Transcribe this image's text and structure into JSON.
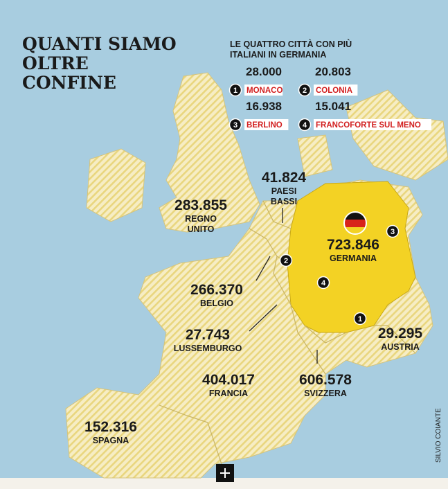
{
  "title": {
    "lines": [
      "QUANTI SIAMO",
      "OLTRE",
      "CONFINE"
    ]
  },
  "subtitle": {
    "lines": [
      "LE QUATTRO CITTÀ CON PIÙ",
      "ITALIANI IN GERMANIA"
    ]
  },
  "cities": [
    {
      "rank": "1",
      "value": "28.000",
      "name": "MONACO"
    },
    {
      "rank": "2",
      "value": "20.803",
      "name": "COLONIA"
    },
    {
      "rank": "3",
      "value": "16.938",
      "name": "BERLINO"
    },
    {
      "rank": "4",
      "value": "15.041",
      "name": "FRANCOFORTE SUL MENO"
    }
  ],
  "countries": [
    {
      "value": "283.855",
      "name": [
        "REGNO",
        "UNITO"
      ]
    },
    {
      "value": "41.824",
      "name": [
        "PAESI",
        "BASSI"
      ]
    },
    {
      "value": "723.846",
      "name": [
        "GERMANIA"
      ]
    },
    {
      "value": "266.370",
      "name": [
        "BELGIO"
      ]
    },
    {
      "value": "27.743",
      "name": [
        "LUSSEMBURGO"
      ]
    },
    {
      "value": "29.295",
      "name": [
        "AUSTRIA"
      ]
    },
    {
      "value": "404.017",
      "name": [
        "FRANCIA"
      ]
    },
    {
      "value": "606.578",
      "name": [
        "SVIZZERA"
      ]
    },
    {
      "value": "152.316",
      "name": [
        "SPAGNA"
      ]
    }
  ],
  "credit": "SILVIO COIANTE"
}
